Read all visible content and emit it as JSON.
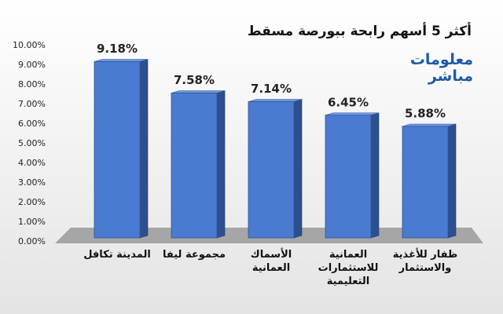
{
  "chart_data": {
    "type": "bar",
    "title": "أكثر 5 أسهم رابحة ببورصة مسقط",
    "logo": "معلومات\nمباشر",
    "categories": [
      "المدينة تكافل",
      "مجموعة ليفا",
      "الأسماك\nالعمانية",
      "العمانية\nللاستثمارات\nالتعليمية",
      "ظفار للأغذية\nوالاستثمار"
    ],
    "values": [
      9.18,
      7.58,
      7.14,
      6.45,
      5.88
    ],
    "value_labels": [
      "9.18%",
      "7.58%",
      "7.14%",
      "6.45%",
      "5.88%"
    ],
    "color": "#4a7bd0",
    "ylim": [
      0,
      10
    ],
    "yticks": [
      {
        "value": 0,
        "label": "0.00%"
      },
      {
        "value": 1,
        "label": "1.00%"
      },
      {
        "value": 2,
        "label": "2.00%"
      },
      {
        "value": 3,
        "label": "3.00%"
      },
      {
        "value": 4,
        "label": "4.00%"
      },
      {
        "value": 5,
        "label": "5.00%"
      },
      {
        "value": 6,
        "label": "6.00%"
      },
      {
        "value": 7,
        "label": "7.00%"
      },
      {
        "value": 8,
        "label": "8.00%"
      },
      {
        "value": 9,
        "label": "9.00%"
      },
      {
        "value": 10,
        "label": "10.00%"
      }
    ],
    "grid": false
  }
}
